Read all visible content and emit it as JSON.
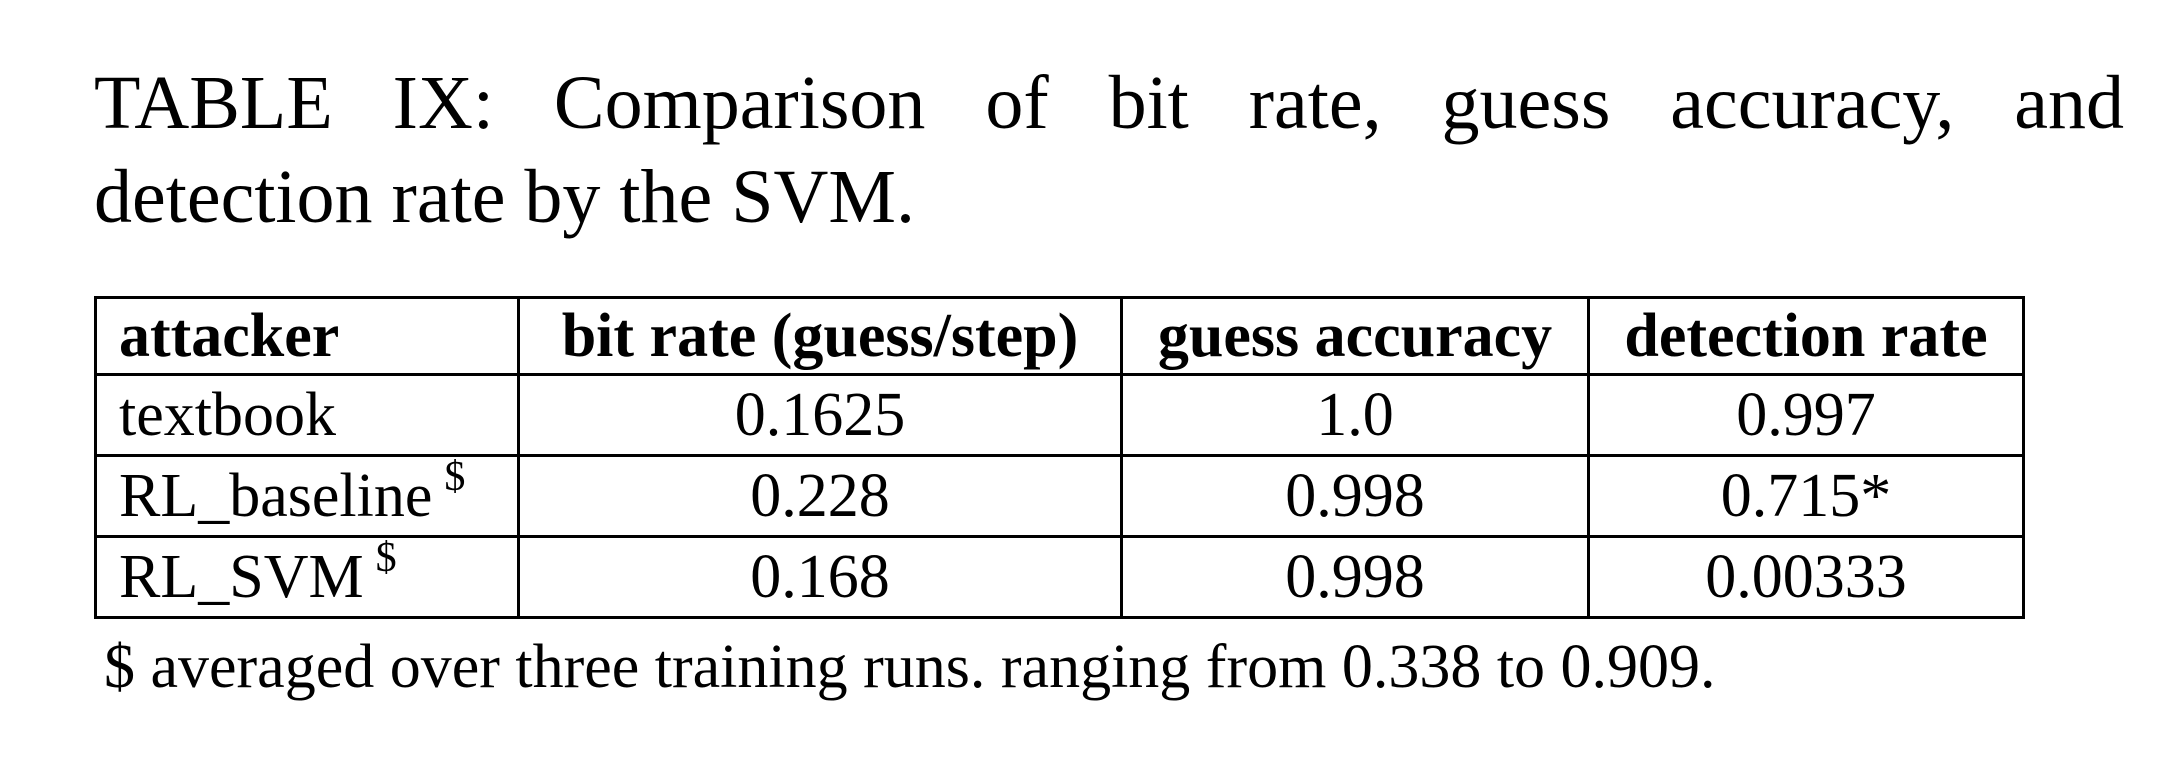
{
  "caption": {
    "line1": "TABLE IX: Comparison of bit rate, guess accuracy, and",
    "line2": "detection rate by the SVM."
  },
  "table": {
    "headers": {
      "attacker": "attacker",
      "bit_rate": "bit rate (guess/step)",
      "guess_accuracy": "guess accuracy",
      "detection_rate": "detection rate"
    },
    "rows": [
      {
        "attacker": "textbook",
        "mark": "",
        "bit_rate": "0.1625",
        "guess_accuracy": "1.0",
        "detection_rate": "0.997"
      },
      {
        "attacker": "RL_baseline",
        "mark": "$",
        "bit_rate": "0.228",
        "guess_accuracy": "0.998",
        "detection_rate": "0.715*"
      },
      {
        "attacker": "RL_SVM",
        "mark": "$",
        "bit_rate": "0.168",
        "guess_accuracy": "0.998",
        "detection_rate": "0.00333"
      }
    ]
  },
  "footnote": "$ averaged over three training runs. ranging from 0.338 to 0.909."
}
